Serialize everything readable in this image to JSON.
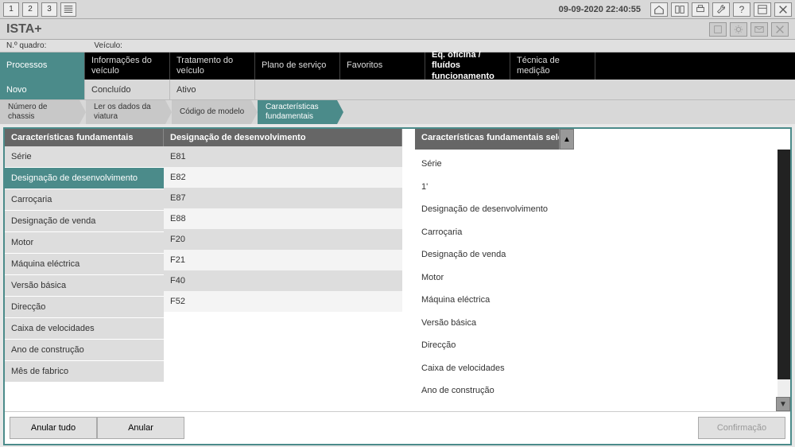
{
  "toolbar": {
    "pages": [
      "1",
      "2",
      "3"
    ],
    "timestamp": "09-09-2020 22:40:55"
  },
  "app": {
    "title": "ISTA+"
  },
  "infobar": {
    "field1_label": "N.º quadro:",
    "field2_label": "Veículo:"
  },
  "nav": [
    {
      "label": "Processos",
      "style": "teal"
    },
    {
      "label": "Informações do veículo",
      "style": ""
    },
    {
      "label": "Tratamento do veículo",
      "style": ""
    },
    {
      "label": "Plano de serviço",
      "style": ""
    },
    {
      "label": "Favoritos",
      "style": ""
    },
    {
      "label": "Eq. oficina / fluídos funcionamento",
      "style": "bold"
    },
    {
      "label": "Técnica de medição",
      "style": ""
    }
  ],
  "subnav": [
    {
      "label": "Novo",
      "style": "teal"
    },
    {
      "label": "Concluído",
      "style": ""
    },
    {
      "label": "Ativo",
      "style": ""
    }
  ],
  "steps": [
    {
      "label": "Número de chassis",
      "style": ""
    },
    {
      "label": "Ler os dados da viatura",
      "style": ""
    },
    {
      "label": "Código de modelo",
      "style": ""
    },
    {
      "label": "Características fundamentais",
      "style": "teal"
    }
  ],
  "col1": {
    "header": "Características fundamentais",
    "items": [
      {
        "label": "Série",
        "sel": false
      },
      {
        "label": "Designação de desenvolvimento",
        "sel": true
      },
      {
        "label": "Carroçaria",
        "sel": false
      },
      {
        "label": "Designação de venda",
        "sel": false
      },
      {
        "label": "Motor",
        "sel": false
      },
      {
        "label": "Máquina eléctrica",
        "sel": false
      },
      {
        "label": "Versão básica",
        "sel": false
      },
      {
        "label": "Direcção",
        "sel": false
      },
      {
        "label": "Caixa de velocidades",
        "sel": false
      },
      {
        "label": "Ano de construção",
        "sel": false
      },
      {
        "label": "Mês de fabrico",
        "sel": false
      }
    ]
  },
  "col2": {
    "header": "Designação de desenvolvimento",
    "items": [
      {
        "label": "E81",
        "shade": "gray"
      },
      {
        "label": "E82",
        "shade": "light"
      },
      {
        "label": "E87",
        "shade": "gray"
      },
      {
        "label": "E88",
        "shade": "light"
      },
      {
        "label": "F20",
        "shade": "gray"
      },
      {
        "label": "F21",
        "shade": "light"
      },
      {
        "label": "F40",
        "shade": "gray"
      },
      {
        "label": "F52",
        "shade": "light"
      }
    ]
  },
  "col3": {
    "header": "Características fundamentais selecc",
    "items": [
      "Série",
      "1'",
      "Designação de desenvolvimento",
      "Carroçaria",
      "Designação de venda",
      "Motor",
      "Máquina eléctrica",
      "Versão básica",
      "Direcção",
      "Caixa de velocidades",
      "Ano de construção"
    ]
  },
  "footer": {
    "btn1": "Anular tudo",
    "btn2": "Anular",
    "btn3": "Confirmação"
  }
}
